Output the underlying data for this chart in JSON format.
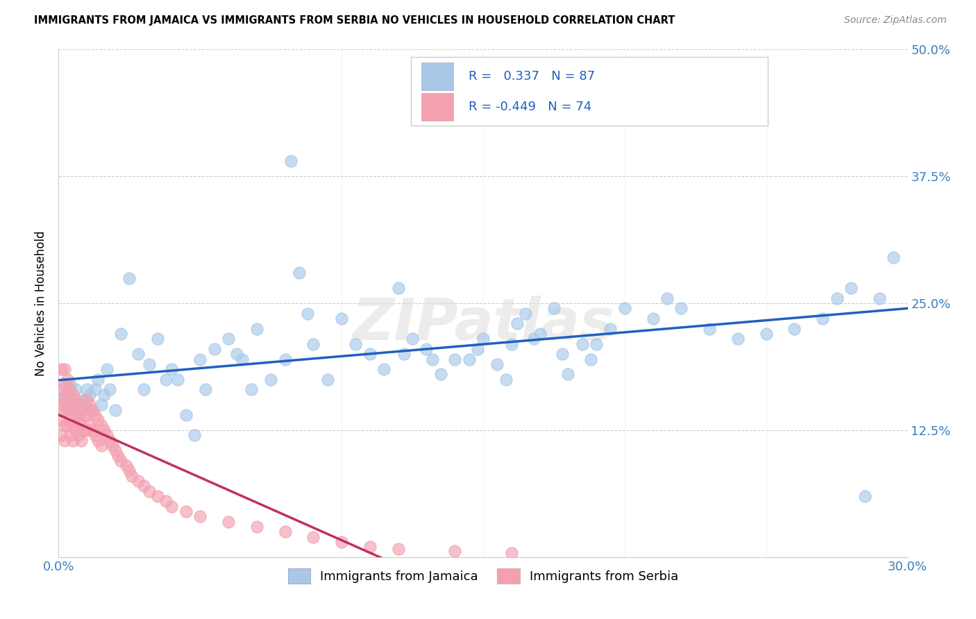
{
  "title": "IMMIGRANTS FROM JAMAICA VS IMMIGRANTS FROM SERBIA NO VEHICLES IN HOUSEHOLD CORRELATION CHART",
  "source": "Source: ZipAtlas.com",
  "ylabel_label": "No Vehicles in Household",
  "legend_label1": "Immigrants from Jamaica",
  "legend_label2": "Immigrants from Serbia",
  "r1": 0.337,
  "n1": 87,
  "r2": -0.449,
  "n2": 74,
  "color_jamaica": "#a8c8e8",
  "color_serbia": "#f4a0b0",
  "color_line1": "#2060c0",
  "color_line2": "#c03060",
  "xlim": [
    0.0,
    0.3
  ],
  "ylim": [
    0.0,
    0.5
  ],
  "xtick_positions": [
    0.0,
    0.05,
    0.1,
    0.15,
    0.2,
    0.25,
    0.3
  ],
  "xtick_labels": [
    "0.0%",
    "",
    "",
    "",
    "",
    "",
    "30.0%"
  ],
  "ytick_positions": [
    0.0,
    0.125,
    0.25,
    0.375,
    0.5
  ],
  "ytick_labels": [
    "",
    "12.5%",
    "25.0%",
    "37.5%",
    "50.0%"
  ],
  "watermark": "ZIPatlas",
  "jamaica_x": [
    0.001,
    0.002,
    0.003,
    0.004,
    0.005,
    0.006,
    0.007,
    0.008,
    0.009,
    0.01,
    0.011,
    0.012,
    0.013,
    0.014,
    0.015,
    0.016,
    0.017,
    0.018,
    0.02,
    0.022,
    0.025,
    0.028,
    0.03,
    0.032,
    0.035,
    0.038,
    0.04,
    0.042,
    0.045,
    0.048,
    0.05,
    0.052,
    0.055,
    0.06,
    0.063,
    0.065,
    0.068,
    0.07,
    0.075,
    0.08,
    0.082,
    0.085,
    0.088,
    0.09,
    0.095,
    0.1,
    0.105,
    0.11,
    0.115,
    0.12,
    0.122,
    0.125,
    0.13,
    0.132,
    0.135,
    0.14,
    0.145,
    0.148,
    0.15,
    0.155,
    0.158,
    0.16,
    0.162,
    0.165,
    0.168,
    0.17,
    0.175,
    0.178,
    0.18,
    0.185,
    0.188,
    0.19,
    0.195,
    0.2,
    0.21,
    0.215,
    0.22,
    0.23,
    0.24,
    0.25,
    0.26,
    0.27,
    0.275,
    0.28,
    0.285,
    0.29,
    0.295
  ],
  "jamaica_y": [
    0.155,
    0.16,
    0.145,
    0.17,
    0.155,
    0.165,
    0.14,
    0.15,
    0.155,
    0.165,
    0.16,
    0.145,
    0.165,
    0.175,
    0.15,
    0.16,
    0.185,
    0.165,
    0.145,
    0.22,
    0.275,
    0.2,
    0.165,
    0.19,
    0.215,
    0.175,
    0.185,
    0.175,
    0.14,
    0.12,
    0.195,
    0.165,
    0.205,
    0.215,
    0.2,
    0.195,
    0.165,
    0.225,
    0.175,
    0.195,
    0.39,
    0.28,
    0.24,
    0.21,
    0.175,
    0.235,
    0.21,
    0.2,
    0.185,
    0.265,
    0.2,
    0.215,
    0.205,
    0.195,
    0.18,
    0.195,
    0.195,
    0.205,
    0.215,
    0.19,
    0.175,
    0.21,
    0.23,
    0.24,
    0.215,
    0.22,
    0.245,
    0.2,
    0.18,
    0.21,
    0.195,
    0.21,
    0.225,
    0.245,
    0.235,
    0.255,
    0.245,
    0.225,
    0.215,
    0.22,
    0.225,
    0.235,
    0.255,
    0.265,
    0.06,
    0.255,
    0.295
  ],
  "serbia_x": [
    0.001,
    0.001,
    0.001,
    0.001,
    0.001,
    0.002,
    0.002,
    0.002,
    0.002,
    0.002,
    0.002,
    0.003,
    0.003,
    0.003,
    0.003,
    0.004,
    0.004,
    0.004,
    0.004,
    0.005,
    0.005,
    0.005,
    0.005,
    0.006,
    0.006,
    0.006,
    0.007,
    0.007,
    0.007,
    0.008,
    0.008,
    0.008,
    0.009,
    0.009,
    0.01,
    0.01,
    0.01,
    0.011,
    0.011,
    0.012,
    0.012,
    0.013,
    0.013,
    0.014,
    0.014,
    0.015,
    0.015,
    0.016,
    0.017,
    0.018,
    0.019,
    0.02,
    0.021,
    0.022,
    0.024,
    0.025,
    0.026,
    0.028,
    0.03,
    0.032,
    0.035,
    0.038,
    0.04,
    0.045,
    0.05,
    0.06,
    0.07,
    0.08,
    0.09,
    0.1,
    0.11,
    0.12,
    0.14,
    0.16
  ],
  "serbia_y": [
    0.185,
    0.165,
    0.15,
    0.135,
    0.12,
    0.185,
    0.17,
    0.155,
    0.145,
    0.13,
    0.115,
    0.175,
    0.16,
    0.145,
    0.13,
    0.165,
    0.15,
    0.135,
    0.12,
    0.16,
    0.145,
    0.13,
    0.115,
    0.155,
    0.14,
    0.125,
    0.15,
    0.135,
    0.12,
    0.145,
    0.13,
    0.115,
    0.14,
    0.125,
    0.155,
    0.14,
    0.125,
    0.15,
    0.13,
    0.145,
    0.125,
    0.14,
    0.12,
    0.135,
    0.115,
    0.13,
    0.11,
    0.125,
    0.12,
    0.115,
    0.11,
    0.105,
    0.1,
    0.095,
    0.09,
    0.085,
    0.08,
    0.075,
    0.07,
    0.065,
    0.06,
    0.055,
    0.05,
    0.045,
    0.04,
    0.035,
    0.03,
    0.025,
    0.02,
    0.015,
    0.01,
    0.008,
    0.006,
    0.004
  ]
}
